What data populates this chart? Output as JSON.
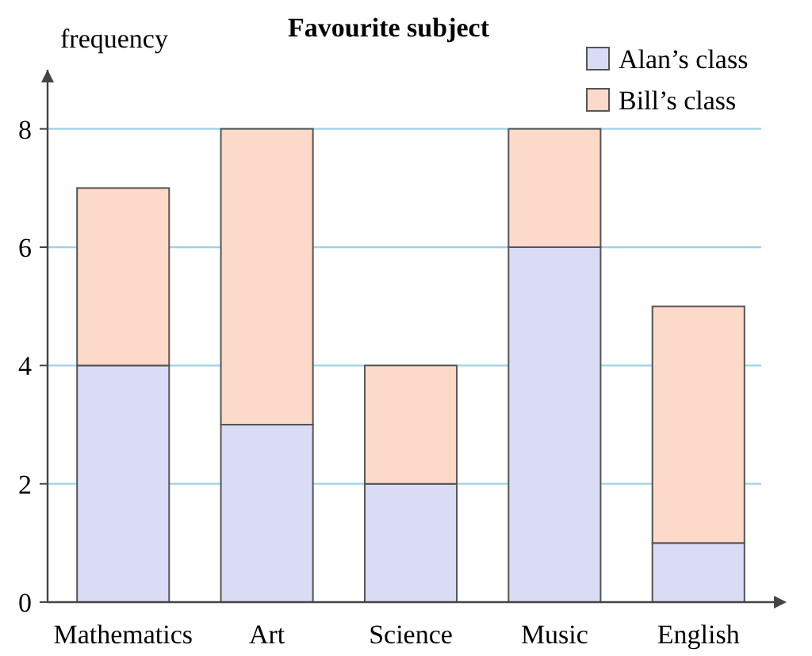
{
  "chart_data": {
    "type": "bar",
    "title": "Favourite subject",
    "ylabel": "frequency",
    "stacked": true,
    "categories": [
      "Mathematics",
      "Art",
      "Science",
      "Music",
      "English"
    ],
    "series": [
      {
        "name": "Alan’s class",
        "color": "#d9dcf4",
        "values": [
          4,
          3,
          2,
          6,
          1
        ]
      },
      {
        "name": "Bill’s class",
        "color": "#fcd9c9",
        "values": [
          3,
          5,
          2,
          2,
          4
        ]
      }
    ],
    "ylim": [
      0,
      9
    ],
    "yticks": [
      0,
      2,
      4,
      6,
      8
    ],
    "grid": "y",
    "legend": "top right"
  }
}
